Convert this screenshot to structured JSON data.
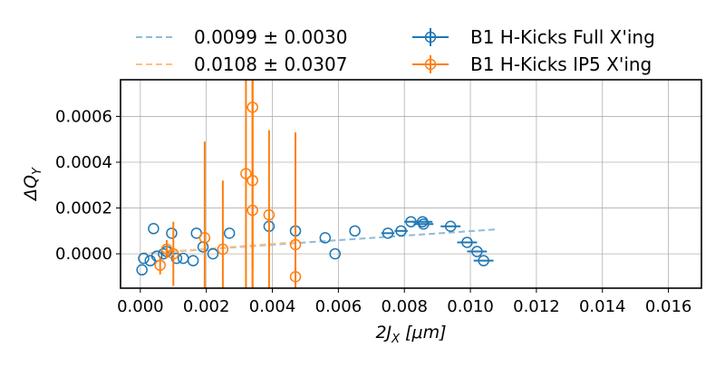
{
  "chart_data": {
    "type": "scatter",
    "xlabel": "2J_X [μm]",
    "ylabel": "ΔQ_Y",
    "xlim": [
      -0.0006,
      0.017
    ],
    "ylim": [
      -0.00015,
      0.00076
    ],
    "xticks": [
      "0.000",
      "0.002",
      "0.004",
      "0.006",
      "0.008",
      "0.010",
      "0.012",
      "0.014",
      "0.016"
    ],
    "yticks": [
      "0.0000",
      "0.0002",
      "0.0004",
      "0.0006"
    ],
    "grid": true,
    "legend_position": "above-plot",
    "fits": [
      {
        "label": "0.0099 ± 0.0030",
        "color": "#8fbbd9",
        "slope": 0.0099,
        "x_range": [
          0.0,
          0.0108
        ]
      },
      {
        "label": "0.0108 ± 0.0307",
        "color": "#ffbf86",
        "slope": 0.0108,
        "x_range": [
          0.0,
          0.0047
        ]
      }
    ],
    "series": [
      {
        "name": "B1 H-Kicks Full X'ing",
        "color": "#1f77b4",
        "points": [
          {
            "x": 5e-05,
            "y": -7e-05,
            "xerr": 0.0,
            "yerr": 0.0
          },
          {
            "x": 0.0001,
            "y": -2e-05,
            "xerr": 0.0,
            "yerr": 0.0
          },
          {
            "x": 0.0003,
            "y": -3e-05,
            "xerr": 0.0,
            "yerr": 0.0
          },
          {
            "x": 0.0004,
            "y": 0.00011,
            "xerr": 0.0,
            "yerr": 0.0
          },
          {
            "x": 0.0005,
            "y": -1e-05,
            "xerr": 0.0,
            "yerr": 0.0
          },
          {
            "x": 0.0007,
            "y": 0.0,
            "xerr": 0.0,
            "yerr": 0.0
          },
          {
            "x": 0.0008,
            "y": 1e-05,
            "xerr": 0.0,
            "yerr": 0.0
          },
          {
            "x": 0.00095,
            "y": 9e-05,
            "xerr": 0.0,
            "yerr": 0.0
          },
          {
            "x": 0.0011,
            "y": -2e-05,
            "xerr": 0.0,
            "yerr": 0.0
          },
          {
            "x": 0.0013,
            "y": -2e-05,
            "xerr": 0.0,
            "yerr": 0.0
          },
          {
            "x": 0.0016,
            "y": -3e-05,
            "xerr": 0.0,
            "yerr": 0.0
          },
          {
            "x": 0.0017,
            "y": 9e-05,
            "xerr": 0.0,
            "yerr": 0.0
          },
          {
            "x": 0.0019,
            "y": 3e-05,
            "xerr": 0.0,
            "yerr": 0.0
          },
          {
            "x": 0.0022,
            "y": 0.0,
            "xerr": 0.0,
            "yerr": 0.0
          },
          {
            "x": 0.0027,
            "y": 9e-05,
            "xerr": 0.0,
            "yerr": 0.0
          },
          {
            "x": 0.0039,
            "y": 0.00012,
            "xerr": 0.0,
            "yerr": 0.0
          },
          {
            "x": 0.0047,
            "y": 0.0001,
            "xerr": 0.0,
            "yerr": 0.0
          },
          {
            "x": 0.0056,
            "y": 7e-05,
            "xerr": 0.0,
            "yerr": 0.0
          },
          {
            "x": 0.0059,
            "y": 0.0,
            "xerr": 0.0,
            "yerr": 0.0
          },
          {
            "x": 0.0065,
            "y": 0.0001,
            "xerr": 0.0,
            "yerr": 0.0
          },
          {
            "x": 0.0075,
            "y": 9e-05,
            "xerr": 0.0002,
            "yerr": 0.0
          },
          {
            "x": 0.0079,
            "y": 0.0001,
            "xerr": 0.0002,
            "yerr": 0.0
          },
          {
            "x": 0.0082,
            "y": 0.00014,
            "xerr": 0.0002,
            "yerr": 0.0
          },
          {
            "x": 0.00855,
            "y": 0.00014,
            "xerr": 0.0003,
            "yerr": 0.0
          },
          {
            "x": 0.00858,
            "y": 0.00013,
            "xerr": 0.0003,
            "yerr": 0.0
          },
          {
            "x": 0.0094,
            "y": 0.00012,
            "xerr": 0.0003,
            "yerr": 0.0
          },
          {
            "x": 0.0099,
            "y": 5e-05,
            "xerr": 0.0003,
            "yerr": 0.0
          },
          {
            "x": 0.0102,
            "y": 1e-05,
            "xerr": 0.0003,
            "yerr": 0.0
          },
          {
            "x": 0.0104,
            "y": -3e-05,
            "xerr": 0.0003,
            "yerr": 0.0
          }
        ]
      },
      {
        "name": "B1 H-Kicks IP5 X'ing",
        "color": "#ff7f0e",
        "points": [
          {
            "x": 0.0006,
            "y": -5e-05,
            "xerr": 0.0,
            "yerr": 4e-05
          },
          {
            "x": 0.0008,
            "y": 2e-05,
            "xerr": 0.0,
            "yerr": 4e-05
          },
          {
            "x": 0.001,
            "y": 0.0,
            "xerr": 0.0,
            "yerr": 0.00014
          },
          {
            "x": 0.00195,
            "y": 7e-05,
            "xerr": 0.0,
            "yerr": 0.00042
          },
          {
            "x": 0.0025,
            "y": 2e-05,
            "xerr": 0.0,
            "yerr": 0.0003
          },
          {
            "x": 0.0032,
            "y": 0.00035,
            "xerr": 0.0,
            "yerr": 0.0007
          },
          {
            "x": 0.0034,
            "y": 0.00032,
            "xerr": 0.0,
            "yerr": 0.0007
          },
          {
            "x": 0.0034,
            "y": 0.00019,
            "xerr": 0.0,
            "yerr": 0.0007
          },
          {
            "x": 0.0034,
            "y": 0.00064,
            "xerr": 0.0,
            "yerr": 0.0007
          },
          {
            "x": 0.0039,
            "y": 0.00017,
            "xerr": 0.0,
            "yerr": 0.00037
          },
          {
            "x": 0.0047,
            "y": 4e-05,
            "xerr": 0.0,
            "yerr": 0.00049
          },
          {
            "x": 0.0047,
            "y": -0.0001,
            "xerr": 0.0,
            "yerr": 5e-05
          }
        ]
      }
    ]
  }
}
